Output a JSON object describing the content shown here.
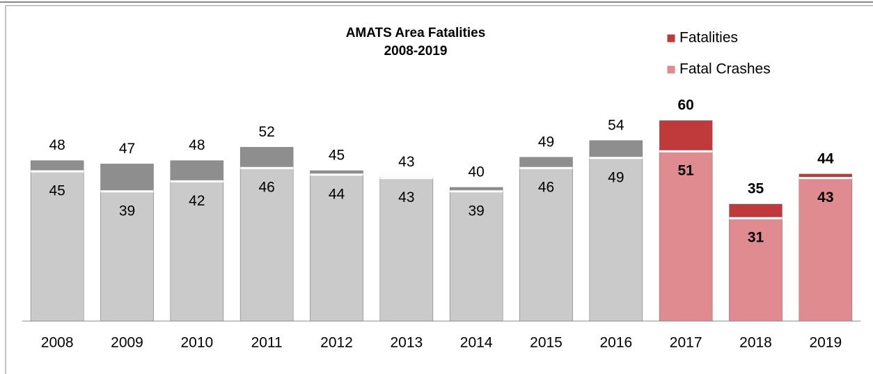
{
  "chart_data": {
    "type": "overlap-bar",
    "title": "AMATS Area Fatalities",
    "subtitle": "2008-2019",
    "categories": [
      "2008",
      "2009",
      "2010",
      "2011",
      "2012",
      "2013",
      "2014",
      "2015",
      "2016",
      "2017",
      "2018",
      "2019"
    ],
    "series": [
      {
        "name": "Fatalities",
        "color": "#c0393b",
        "colors": [
          "#8e8e8e",
          "#8e8e8e",
          "#8e8e8e",
          "#8e8e8e",
          "#8e8e8e",
          "#8e8e8e",
          "#8e8e8e",
          "#8e8e8e",
          "#8e8e8e",
          "#c0393b",
          "#c0393b",
          "#c0393b"
        ],
        "values": [
          48,
          47,
          48,
          52,
          45,
          43,
          40,
          49,
          54,
          60,
          35,
          44
        ]
      },
      {
        "name": "Fatal Crashes",
        "color": "#e08b90",
        "colors": [
          "#cacaca",
          "#cacaca",
          "#cacaca",
          "#cacaca",
          "#cacaca",
          "#cacaca",
          "#cacaca",
          "#cacaca",
          "#cacaca",
          "#e08b90",
          "#e08b90",
          "#e08b90"
        ],
        "values": [
          45,
          39,
          42,
          46,
          44,
          43,
          39,
          46,
          49,
          51,
          31,
          43
        ]
      }
    ],
    "ylim": [
      0,
      70
    ],
    "legend": "top-right"
  }
}
